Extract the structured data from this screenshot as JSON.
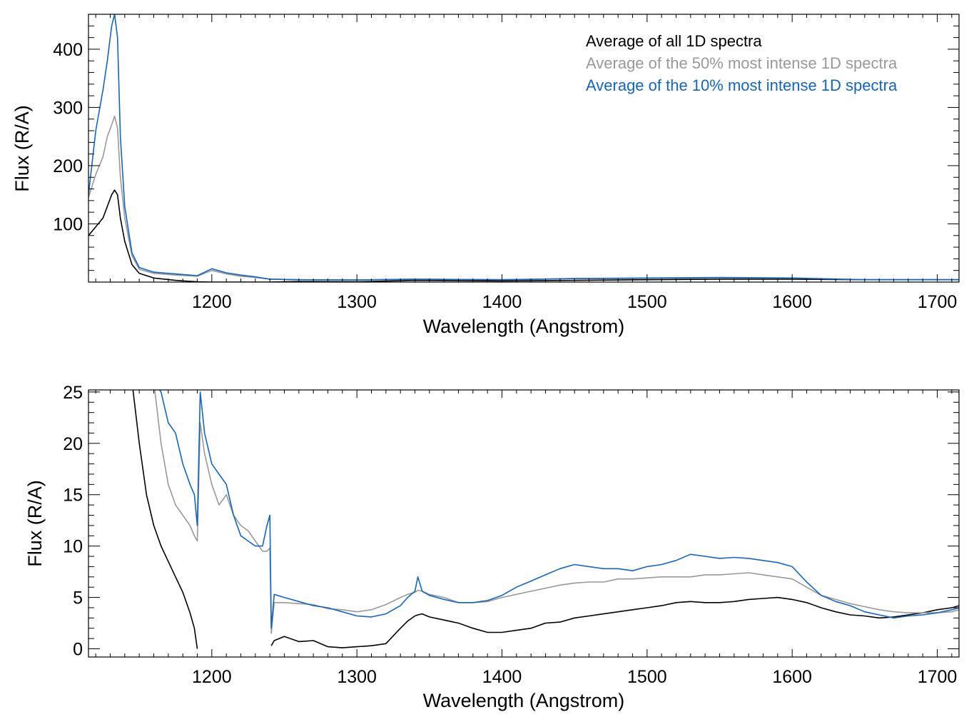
{
  "colors": {
    "all": "#000000",
    "fifty": "#999999",
    "ten": "#1565c0",
    "axis": "#000000"
  },
  "chart_data": [
    {
      "type": "line",
      "xlabel": "Wavelength (Angstrom)",
      "ylabel": "Flux (R/A)",
      "xlim": [
        1115,
        1715
      ],
      "ylim": [
        0,
        460
      ],
      "xticks": [
        1200,
        1300,
        1400,
        1500,
        1600,
        1700
      ],
      "yticks": [
        100,
        200,
        300,
        400
      ],
      "grid": false,
      "legend_position": "top-right",
      "legend": [
        "Average of all 1D spectra",
        "Average of the 50% most intense 1D spectra",
        "Average of the 10% most intense 1D spectra"
      ],
      "x": [
        1115,
        1120,
        1125,
        1128,
        1131,
        1133,
        1135,
        1137,
        1140,
        1145,
        1150,
        1160,
        1175,
        1190,
        1200,
        1210,
        1220,
        1230,
        1240,
        1260,
        1300,
        1340,
        1400,
        1450,
        1500,
        1550,
        1600,
        1650,
        1715
      ],
      "series": [
        {
          "name": "Average of all 1D spectra",
          "color_key": "all",
          "values": [
            80,
            95,
            110,
            130,
            150,
            158,
            150,
            110,
            70,
            30,
            15,
            7,
            3,
            0.5,
            0,
            0,
            0,
            0,
            0,
            1,
            0.5,
            3,
            2,
            3,
            4,
            5,
            5,
            4,
            4
          ]
        },
        {
          "name": "Average of the 50% most intense 1D spectra",
          "color_key": "fifty",
          "values": [
            145,
            185,
            215,
            250,
            270,
            285,
            265,
            180,
            110,
            45,
            22,
            15,
            12,
            10,
            20,
            14,
            10,
            8,
            5,
            4,
            3.5,
            5,
            4,
            6,
            6,
            7,
            7,
            4,
            4
          ]
        },
        {
          "name": "Average of the 10% most intense 1D spectra",
          "color_key": "ten",
          "values": [
            150,
            260,
            330,
            380,
            440,
            460,
            420,
            250,
            130,
            50,
            25,
            17,
            14,
            11,
            23,
            16,
            12,
            9,
            5,
            4,
            3.5,
            5,
            4,
            6,
            7,
            8,
            7,
            4,
            4
          ]
        }
      ]
    },
    {
      "type": "line",
      "xlabel": "Wavelength (Angstrom)",
      "ylabel": "Flux (R/A)",
      "xlim": [
        1115,
        1715
      ],
      "ylim": [
        -0.8,
        25.2
      ],
      "xticks": [
        1200,
        1300,
        1400,
        1500,
        1600,
        1700
      ],
      "yticks": [
        0,
        5,
        10,
        15,
        20,
        25
      ],
      "grid": false,
      "x": [
        1145,
        1150,
        1155,
        1160,
        1165,
        1170,
        1175,
        1180,
        1185,
        1188,
        1190,
        1192,
        1195,
        1200,
        1205,
        1210,
        1215,
        1220,
        1225,
        1230,
        1235,
        1238,
        1240,
        1241,
        1243,
        1250,
        1260,
        1270,
        1280,
        1290,
        1300,
        1310,
        1320,
        1330,
        1335,
        1340,
        1342,
        1345,
        1350,
        1360,
        1370,
        1380,
        1390,
        1400,
        1410,
        1420,
        1430,
        1440,
        1450,
        1460,
        1470,
        1480,
        1490,
        1500,
        1510,
        1520,
        1530,
        1540,
        1550,
        1560,
        1570,
        1580,
        1590,
        1600,
        1610,
        1620,
        1630,
        1640,
        1650,
        1660,
        1670,
        1680,
        1690,
        1700,
        1710,
        1715
      ],
      "series": [
        {
          "name": "Average of all 1D spectra",
          "color_key": "all",
          "values": [
            26,
            20,
            15,
            12,
            10,
            8.5,
            7,
            5.5,
            3.5,
            2,
            0,
            null,
            null,
            null,
            null,
            null,
            null,
            null,
            null,
            null,
            null,
            null,
            null,
            0.3,
            0.8,
            1.2,
            0.7,
            0.8,
            0.2,
            0.1,
            0.2,
            0.3,
            0.5,
            2,
            2.7,
            3.2,
            3.3,
            3.4,
            3.1,
            2.8,
            2.5,
            2.0,
            1.6,
            1.6,
            1.8,
            2.0,
            2.5,
            2.6,
            3.0,
            3.2,
            3.4,
            3.6,
            3.8,
            4.0,
            4.2,
            4.5,
            4.6,
            4.5,
            4.5,
            4.6,
            4.8,
            4.9,
            5.0,
            4.8,
            4.5,
            4.0,
            3.6,
            3.3,
            3.2,
            3.0,
            3.1,
            3.3,
            3.5,
            3.8,
            4.0,
            4.2
          ]
        },
        {
          "name": "Average of the 50% most intense 1D spectra",
          "color_key": "fifty",
          "values": [
            null,
            null,
            null,
            26,
            20,
            16,
            14,
            13,
            12,
            11,
            10.5,
            22,
            19,
            16,
            14,
            15,
            13,
            12,
            11.5,
            10.5,
            9.5,
            9.5,
            9.8,
            1.5,
            4.5,
            4.5,
            4.4,
            4.3,
            3.9,
            3.8,
            3.6,
            3.8,
            4.3,
            5.0,
            5.3,
            5.5,
            5.7,
            5.6,
            5.3,
            5.0,
            4.5,
            4.5,
            4.6,
            5.0,
            5.3,
            5.6,
            5.9,
            6.2,
            6.4,
            6.5,
            6.5,
            6.8,
            6.8,
            6.9,
            7.0,
            7.0,
            7.0,
            7.2,
            7.2,
            7.3,
            7.4,
            7.2,
            7.0,
            6.8,
            6.0,
            5.2,
            4.8,
            4.4,
            4.1,
            3.8,
            3.6,
            3.5,
            3.5,
            3.5,
            3.6,
            3.8
          ]
        },
        {
          "name": "Average of the 10% most intense 1D spectra",
          "color_key": "ten",
          "values": [
            null,
            null,
            null,
            26,
            25,
            22,
            21,
            18,
            16,
            15,
            12,
            25,
            21,
            18,
            17,
            16,
            13,
            11,
            10.5,
            10,
            10,
            12,
            13,
            2,
            5.3,
            5.0,
            4.6,
            4.2,
            4.0,
            3.6,
            3.2,
            3.1,
            3.4,
            4.2,
            5.0,
            5.6,
            7.0,
            5.6,
            5.2,
            4.8,
            4.5,
            4.5,
            4.7,
            5.2,
            6.0,
            6.6,
            7.2,
            7.8,
            8.2,
            8.0,
            7.8,
            7.8,
            7.6,
            8.0,
            8.2,
            8.6,
            9.2,
            9.0,
            8.8,
            8.9,
            8.8,
            8.6,
            8.4,
            8.0,
            6.5,
            5.2,
            4.6,
            4.2,
            3.6,
            3.3,
            3.0,
            3.2,
            3.3,
            3.5,
            3.8,
            4.0
          ]
        }
      ]
    }
  ]
}
